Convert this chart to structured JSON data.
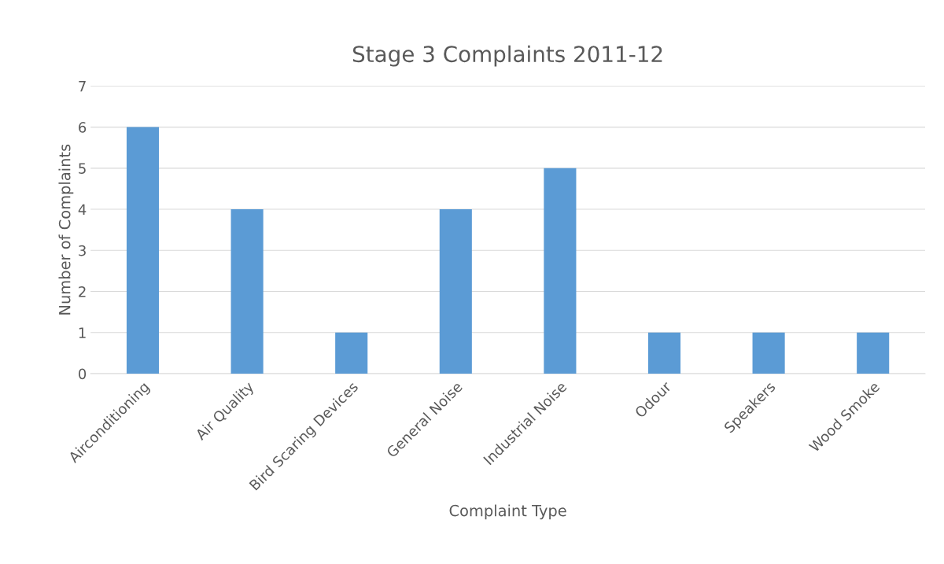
{
  "chart_data": {
    "type": "bar",
    "title": "Stage 3 Complaints 2011-12",
    "xlabel": "Complaint Type",
    "ylabel": "Number of Complaints",
    "categories": [
      "Airconditioning",
      "Air Quality",
      "Bird Scaring Devices",
      "General Noise",
      "Industrial Noise",
      "Odour",
      "Speakers",
      "Wood Smoke"
    ],
    "values": [
      6,
      4,
      1,
      4,
      5,
      1,
      1,
      1
    ],
    "color": "#5b9bd5",
    "ylim": [
      0,
      7
    ],
    "yticks": [
      0,
      1,
      2,
      3,
      4,
      5,
      6,
      7
    ],
    "grid": "y",
    "legend": false
  }
}
